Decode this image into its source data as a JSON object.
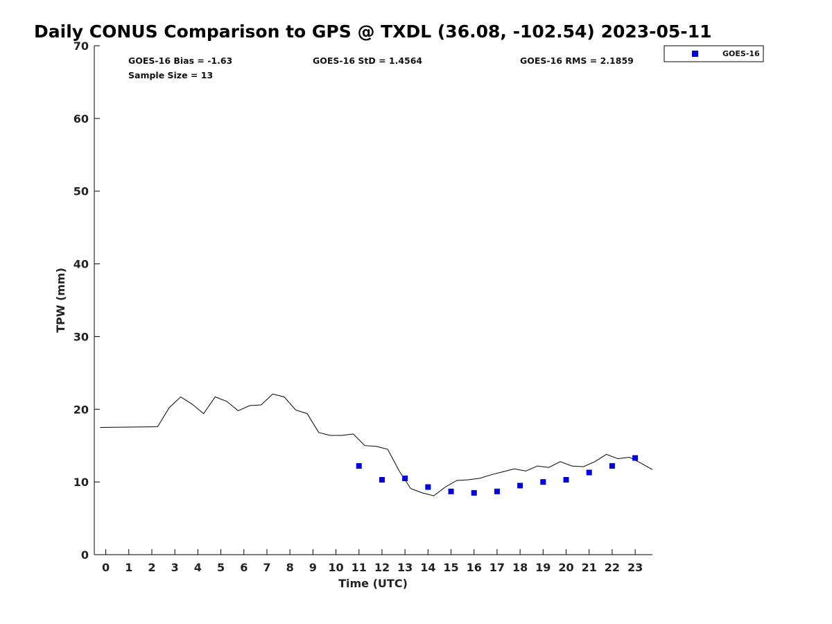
{
  "chart_data": {
    "type": "line",
    "title": "Daily CONUS Comparison to GPS @ TXDL (36.08, -102.54) 2023-05-11",
    "xlabel": "Time (UTC)",
    "ylabel": "TPW (mm)",
    "xlim": [
      -0.5,
      23.75
    ],
    "ylim": [
      0,
      70
    ],
    "x_ticks": [
      0,
      1,
      2,
      3,
      4,
      5,
      6,
      7,
      8,
      9,
      10,
      11,
      12,
      13,
      14,
      15,
      16,
      17,
      18,
      19,
      20,
      21,
      22,
      23
    ],
    "x_tick_labels": [
      "0",
      "1",
      "2",
      "3",
      "4",
      "5",
      "6",
      "7",
      "8",
      "9",
      "10",
      "11",
      "12",
      "13",
      "14",
      "15",
      "16",
      "17",
      "18",
      "19",
      "20",
      "21",
      "22",
      "23"
    ],
    "y_ticks": [
      0,
      10,
      20,
      30,
      40,
      50,
      60,
      70
    ],
    "y_tick_labels": [
      "0",
      "10",
      "20",
      "30",
      "40",
      "50",
      "60",
      "70"
    ],
    "grid": false,
    "legend_position": "top-right, outside plot",
    "series": [
      {
        "render": "line",
        "color": "#000000",
        "x": [
          -0.25,
          2.25,
          2.75,
          3.25,
          3.75,
          4.25,
          4.75,
          5.25,
          5.75,
          6.25,
          6.75,
          7.25,
          7.75,
          8.25,
          8.75,
          9.25,
          9.75,
          10.25,
          10.75,
          11.25,
          11.75,
          12.25,
          12.75,
          13.25,
          13.75,
          14.25,
          14.75,
          15.25,
          15.75,
          16.25,
          16.75,
          17.25,
          17.75,
          18.25,
          18.75,
          19.25,
          19.75,
          20.25,
          20.75,
          21.25,
          21.75,
          22.25,
          22.75,
          23.25,
          23.75
        ],
        "values": [
          17.5,
          17.6,
          20.2,
          21.7,
          20.7,
          19.4,
          21.7,
          21.1,
          19.8,
          20.5,
          20.6,
          22.1,
          21.7,
          19.9,
          19.4,
          16.8,
          16.4,
          16.4,
          16.6,
          15.0,
          14.9,
          14.5,
          11.5,
          9.1,
          8.5,
          8.1,
          9.3,
          10.2,
          10.3,
          10.5,
          11.0,
          11.4,
          11.8,
          11.5,
          12.2,
          12.0,
          12.8,
          12.2,
          12.1,
          12.8,
          13.8,
          13.2,
          13.4,
          12.6,
          11.7
        ]
      },
      {
        "name": "GOES-16",
        "render": "markers",
        "marker": "square",
        "color": "#0000dd",
        "x": [
          11,
          12,
          13,
          14,
          15,
          16,
          17,
          18,
          19,
          20,
          21,
          22,
          23
        ],
        "values": [
          12.2,
          10.3,
          10.5,
          9.3,
          8.7,
          8.5,
          8.7,
          9.5,
          10.0,
          10.3,
          11.3,
          12.2,
          13.3
        ]
      }
    ],
    "annotations": {
      "bias": "GOES-16 Bias = -1.63",
      "std": "GOES-16 StD = 1.4564",
      "rms": "GOES-16 RMS = 2.1859",
      "sample_size": "Sample Size = 13"
    }
  }
}
